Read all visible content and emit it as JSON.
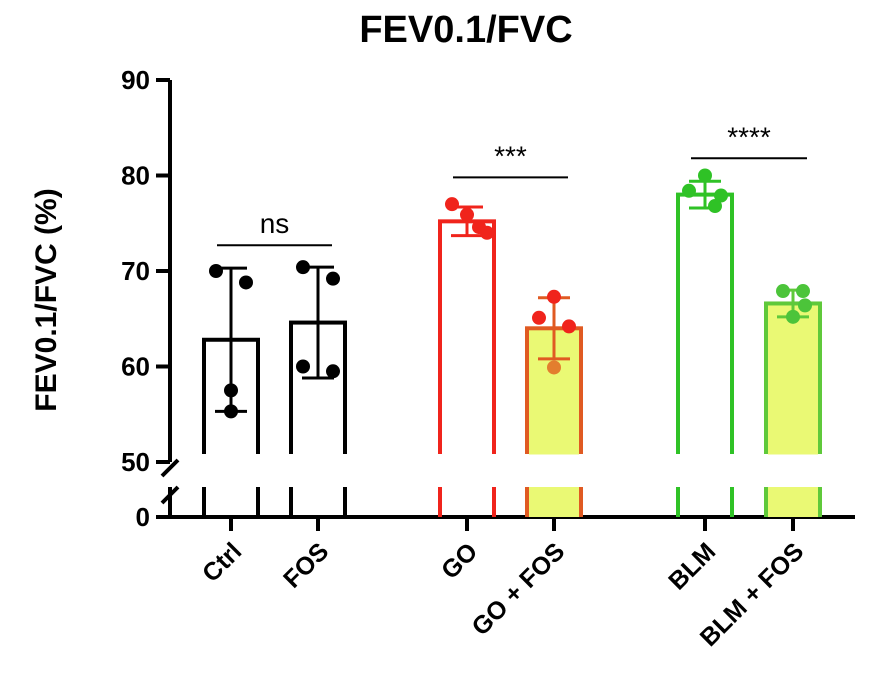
{
  "chart_data": {
    "type": "bar",
    "title": "FEV0.1/FVC",
    "ylabel": "FEV0.1/FVC (%)",
    "xlabel": "",
    "ylim": [
      0,
      90
    ],
    "axis_break": [
      0,
      50
    ],
    "yticks": [
      "0",
      "50",
      "60",
      "70",
      "80",
      "90"
    ],
    "grid": false,
    "categories": [
      "Ctrl",
      "FOS",
      "GO",
      "GO + FOS",
      "BLM",
      "BLM + FOS"
    ],
    "bars": [
      {
        "category": "Ctrl",
        "mean": 62.8,
        "sd": 7.5,
        "edge": "#000000",
        "fill": "none",
        "points": [
          70.0,
          68.8,
          57.5,
          55.3
        ],
        "point_color": "#000000"
      },
      {
        "category": "FOS",
        "mean": 64.6,
        "sd": 5.8,
        "edge": "#000000",
        "fill": "none",
        "points": [
          70.4,
          69.2,
          60.0,
          59.5
        ],
        "point_color": "#000000"
      },
      {
        "category": "GO",
        "mean": 75.2,
        "sd": 1.5,
        "edge": "#f0241c",
        "fill": "none",
        "points": [
          77.0,
          75.9,
          74.6,
          74.0
        ],
        "point_color": "#f0241c"
      },
      {
        "category": "GO + FOS",
        "mean": 64.0,
        "sd": 3.2,
        "edge": "#e05a22",
        "fill": "#eaf974",
        "points": [
          67.3,
          65.1,
          64.2,
          59.9
        ],
        "point_color_top": "#f0241c",
        "point_color_bottom": "#e37e2e"
      },
      {
        "category": "BLM",
        "mean": 78.0,
        "sd": 1.4,
        "edge": "#2fc226",
        "fill": "none",
        "points": [
          80.0,
          78.4,
          77.9,
          76.8
        ],
        "point_color": "#2fc226"
      },
      {
        "category": "BLM + FOS",
        "mean": 66.6,
        "sd": 1.4,
        "edge": "#5fc93a",
        "fill": "#eaf974",
        "points": [
          67.9,
          67.9,
          66.4,
          65.2
        ],
        "point_color": "#4cc43a"
      }
    ],
    "comparisons": [
      {
        "groups": [
          "Ctrl",
          "FOS"
        ],
        "label": "ns",
        "y": 72.7
      },
      {
        "groups": [
          "GO",
          "GO + FOS"
        ],
        "label": "***",
        "y": 79.8
      },
      {
        "groups": [
          "BLM",
          "BLM + FOS"
        ],
        "label": "****",
        "y": 81.8
      }
    ]
  }
}
